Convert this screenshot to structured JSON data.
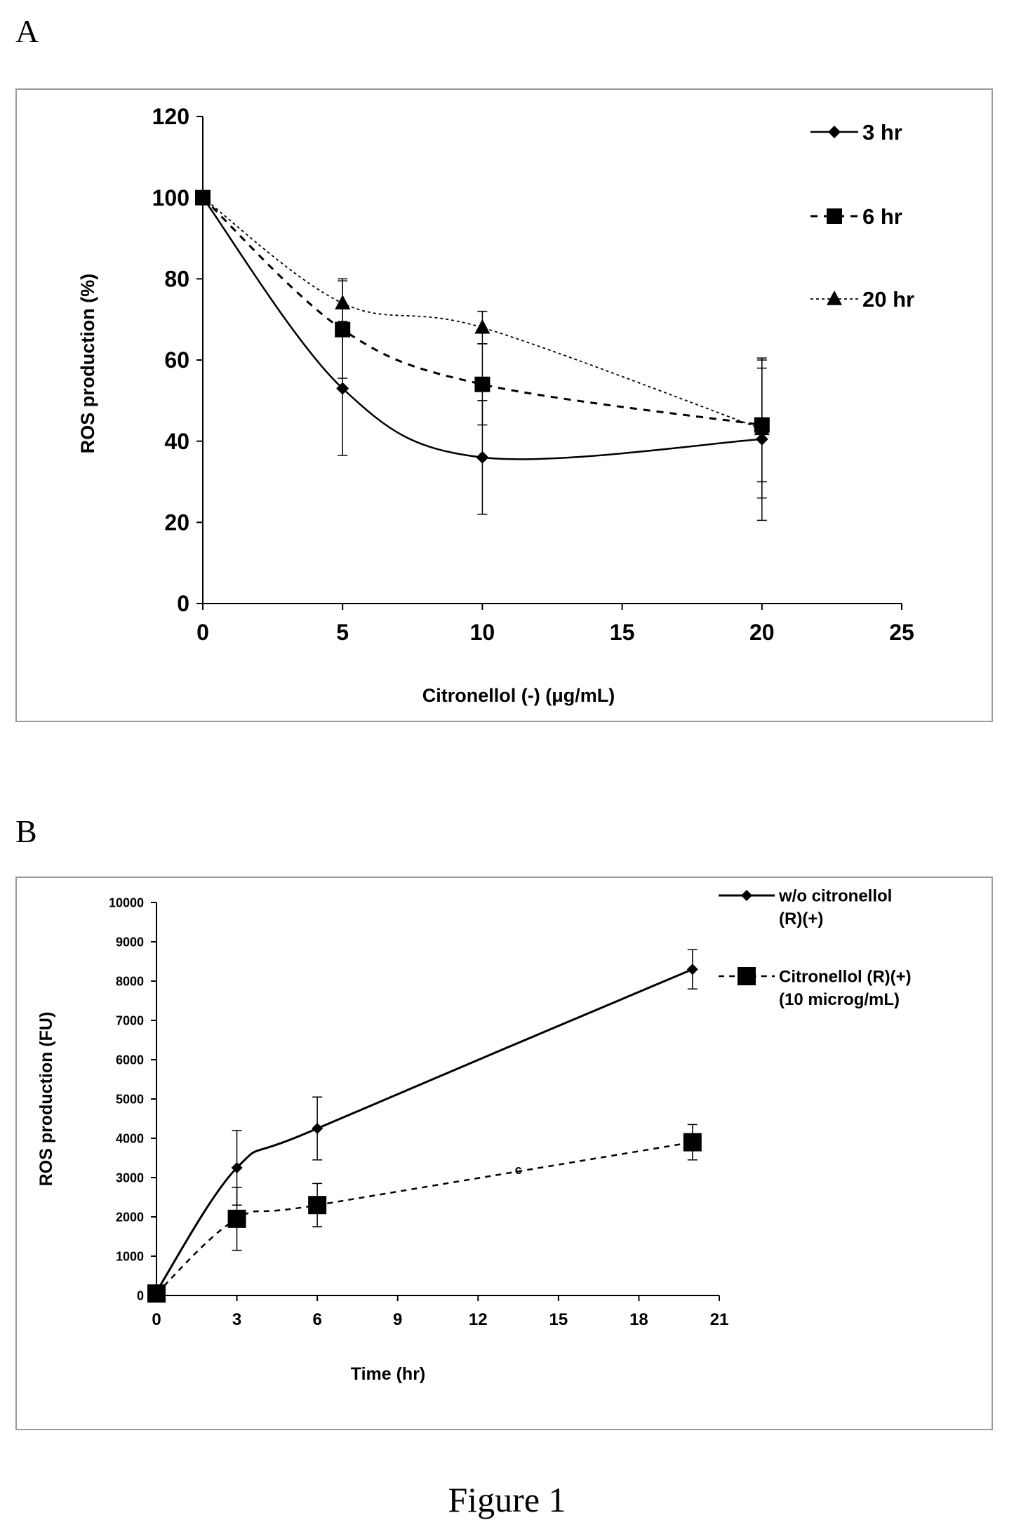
{
  "panels": {
    "a_label": "A",
    "b_label": "B"
  },
  "caption": "Figure 1",
  "chart_data": [
    {
      "type": "line",
      "panel": "A",
      "title": "",
      "xlabel": "Citronellol (-) (μg/mL)",
      "ylabel": "ROS production (%)",
      "xlim": [
        0,
        25
      ],
      "ylim": [
        0,
        120
      ],
      "xticks": [
        0,
        5,
        10,
        15,
        20,
        25
      ],
      "yticks": [
        0,
        20,
        40,
        60,
        80,
        100,
        120
      ],
      "grid": false,
      "legend_position": "top-right",
      "series": [
        {
          "name": "3 hr",
          "marker": "diamond",
          "style": "solid",
          "x": [
            0,
            5,
            10,
            20
          ],
          "y": [
            100,
            53,
            36,
            40.5
          ],
          "err": [
            0,
            16.5,
            14,
            20
          ]
        },
        {
          "name": "6 hr",
          "marker": "square",
          "style": "dashed",
          "x": [
            0,
            5,
            10,
            20
          ],
          "y": [
            100,
            67.5,
            54,
            44
          ],
          "err": [
            0,
            12,
            10,
            14
          ]
        },
        {
          "name": "20 hr",
          "marker": "triangle",
          "style": "dotted",
          "x": [
            0,
            5,
            10,
            20
          ],
          "y": [
            100,
            74,
            68,
            43
          ],
          "err": [
            0,
            6,
            4,
            17
          ]
        }
      ]
    },
    {
      "type": "line",
      "panel": "B",
      "title": "",
      "xlabel": "Time (hr)",
      "ylabel": "ROS production (FU)",
      "xlim": [
        0,
        21
      ],
      "ylim": [
        0,
        10000
      ],
      "xticks": [
        0,
        3,
        6,
        9,
        12,
        15,
        18,
        21
      ],
      "yticks": [
        0,
        1000,
        2000,
        3000,
        4000,
        5000,
        6000,
        7000,
        8000,
        9000,
        10000
      ],
      "grid": false,
      "legend_position": "top-right",
      "series": [
        {
          "name": "w/o citronellol",
          "name_line2": "(R)(+)",
          "marker": "diamond",
          "style": "solid",
          "x": [
            0,
            3,
            6,
            20
          ],
          "y": [
            100,
            3250,
            4250,
            8300
          ],
          "err": [
            0,
            950,
            800,
            500
          ]
        },
        {
          "name": "Citronellol (R)(+)",
          "name_line2": "(10 microg/mL)",
          "marker": "square",
          "style": "dashed",
          "x": [
            0,
            3,
            6,
            20
          ],
          "y": [
            50,
            1950,
            2300,
            3900
          ],
          "err": [
            0,
            800,
            550,
            450
          ]
        }
      ],
      "annotations": [
        {
          "text": "c",
          "x": 13.5,
          "y": 3200
        }
      ]
    }
  ]
}
